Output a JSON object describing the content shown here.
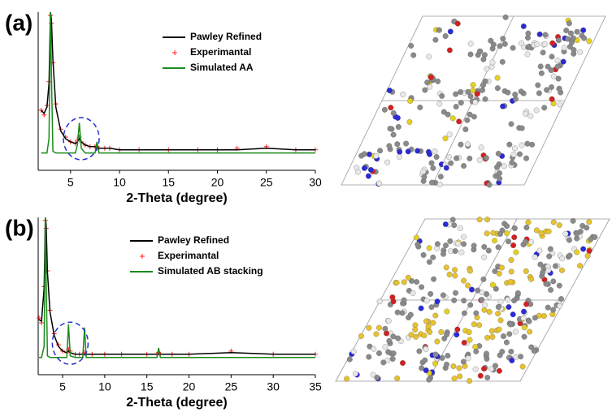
{
  "chart_data": [
    {
      "type": "line",
      "panel_label": "(a)",
      "x_label": "2-Theta (degree)",
      "x": [
        2,
        2.3,
        2.6,
        2.8,
        2.95,
        3.05,
        3.2,
        3.5,
        4,
        4.5,
        5,
        5.5,
        5.7,
        5.9,
        6.1,
        6.5,
        7,
        7.5,
        7.7,
        7.9,
        8.5,
        9,
        10,
        12,
        15,
        18,
        20,
        22,
        25,
        28,
        30
      ],
      "series": [
        {
          "name": "Pawley Refined",
          "color": "#000000",
          "mode": "line",
          "values": [
            38,
            36,
            40,
            55,
            100,
            95,
            70,
            40,
            25,
            20,
            18,
            17,
            18,
            20,
            18,
            16,
            15,
            15,
            14,
            14,
            14,
            14,
            13,
            13,
            13,
            13,
            13,
            13,
            14,
            13,
            13
          ]
        },
        {
          "name": "Experimantal",
          "color": "#ff2020",
          "mode": "markers",
          "values": [
            38,
            35,
            41,
            56,
            98,
            93,
            68,
            42,
            26,
            21,
            18,
            17,
            19,
            21,
            18,
            16,
            15,
            15,
            15,
            14,
            14,
            14,
            13,
            13,
            13,
            13,
            13,
            14,
            15,
            13,
            13
          ]
        },
        {
          "name": "Simulated AA",
          "color": "#1a8a1a",
          "mode": "line",
          "values": [
            11,
            11,
            11,
            20,
            100,
            60,
            12,
            11,
            11,
            11,
            11,
            11,
            16,
            30,
            14,
            11,
            11,
            11,
            18,
            11,
            11,
            11,
            11,
            11,
            11,
            11,
            11,
            11,
            11,
            11,
            11
          ]
        }
      ],
      "xlim": [
        1.7,
        30
      ],
      "xticks": [
        5,
        10,
        15,
        20,
        25,
        30
      ],
      "ylim": [
        0,
        100
      ]
    },
    {
      "type": "line",
      "panel_label": "(b)",
      "x_label": "2-Theta (degree)",
      "x": [
        2.2,
        2.5,
        2.8,
        2.95,
        3.05,
        3.2,
        3.5,
        4,
        4.5,
        5,
        5.5,
        5.7,
        5.9,
        6.5,
        7,
        7.4,
        7.6,
        7.8,
        8.5,
        10,
        12,
        15,
        16.2,
        16.4,
        16.6,
        18,
        20,
        25,
        30,
        35
      ],
      "series": [
        {
          "name": "Pawley Refined",
          "color": "#000000",
          "mode": "line",
          "values": [
            35,
            34,
            55,
            100,
            95,
            65,
            40,
            25,
            18,
            15,
            14,
            15,
            14,
            13,
            13,
            13,
            13,
            13,
            13,
            13,
            13,
            13,
            13,
            13,
            13,
            13,
            13,
            14,
            13,
            13
          ]
        },
        {
          "name": "Experimantal",
          "color": "#ff2020",
          "mode": "markers",
          "values": [
            36,
            33,
            56,
            98,
            93,
            66,
            41,
            26,
            19,
            15,
            14,
            16,
            15,
            13,
            13,
            13,
            14,
            13,
            13,
            13,
            13,
            13,
            13,
            14,
            13,
            13,
            13,
            15,
            13,
            13
          ]
        },
        {
          "name": "Simulated AB stacking",
          "color": "#1a8a1a",
          "mode": "line",
          "values": [
            11,
            11,
            18,
            100,
            60,
            12,
            11,
            11,
            11,
            11,
            11,
            32,
            12,
            11,
            11,
            11,
            30,
            11,
            11,
            11,
            11,
            11,
            11,
            17,
            11,
            11,
            11,
            11,
            11,
            11
          ]
        }
      ],
      "xlim": [
        2.1,
        35
      ],
      "xticks": [
        5,
        10,
        15,
        20,
        25,
        30,
        35
      ],
      "ylim": [
        0,
        100
      ]
    }
  ]
}
